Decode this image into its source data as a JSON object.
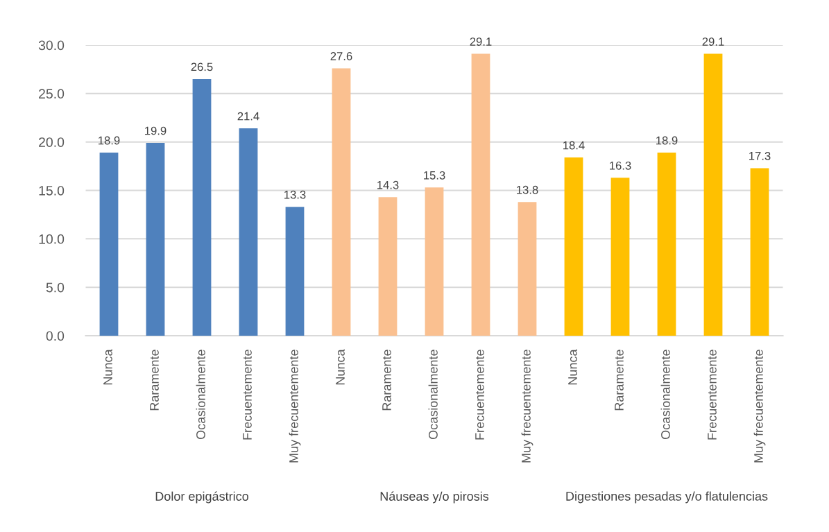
{
  "chart_data": {
    "type": "bar",
    "categories": [
      "Nunca",
      "Raramente",
      "Ocasionalmente",
      "Frecuentemente",
      "Muy frecuentemente",
      "Nunca",
      "Raramente",
      "Ocasionalmente",
      "Frecuentemente",
      "Muy frecuentemente",
      "Nunca",
      "Raramente",
      "Ocasionalmente",
      "Frecuentemente",
      "Muy frecuentemente"
    ],
    "series": [
      {
        "color": "#4f81bd",
        "values": [
          18.9,
          19.9,
          26.5,
          21.4,
          13.3,
          null,
          null,
          null,
          null,
          null,
          null,
          null,
          null,
          null,
          null
        ]
      },
      {
        "color": "#fac090",
        "values": [
          null,
          null,
          null,
          null,
          null,
          27.6,
          14.3,
          15.3,
          29.1,
          13.8,
          null,
          null,
          null,
          null,
          null
        ]
      },
      {
        "color": "#ffc000",
        "values": [
          null,
          null,
          null,
          null,
          null,
          null,
          null,
          null,
          null,
          null,
          18.4,
          16.3,
          18.9,
          29.1,
          17.3
        ]
      }
    ],
    "annotations": [
      "Dolor epigástrico",
      "Náuseas y/o pirosis",
      "Digestiones pesadas y/o flatulencias"
    ],
    "ylim": [
      0,
      30
    ],
    "yticks": [
      {
        "value": 0,
        "label": "0.0"
      },
      {
        "value": 5,
        "label": "5.0"
      },
      {
        "value": 10,
        "label": "10.0"
      },
      {
        "value": 15,
        "label": "15.0"
      },
      {
        "value": 20,
        "label": "20.0"
      },
      {
        "value": 25,
        "label": "25.0"
      },
      {
        "value": 30,
        "label": "30.0"
      }
    ],
    "grid": "y",
    "data_labels": true
  }
}
